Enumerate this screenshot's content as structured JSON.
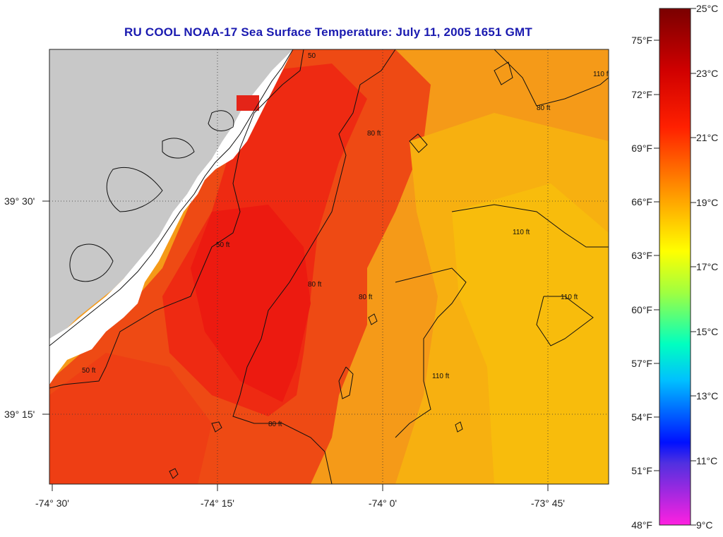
{
  "title": "RU COOL  NOAA-17  Sea Surface Temperature:  July 11, 2005 1651 GMT",
  "axes": {
    "lon_labels": [
      "-74° 30'",
      "-74° 15'",
      "-74° 0'",
      "-73° 45'"
    ],
    "lat_labels": [
      "39° 30'",
      "39° 15'"
    ]
  },
  "contours": {
    "labels": [
      "50",
      "80 ft",
      "80 ft",
      "110 ft",
      "50 ft",
      "80 ft",
      "80 ft",
      "110 ft",
      "50 ft",
      "110 ft",
      "110 ft",
      "80 ft"
    ]
  },
  "colorbar": {
    "celsius": [
      "25°C",
      "23°C",
      "21°C",
      "19°C",
      "17°C",
      "15°C",
      "13°C",
      "11°C",
      "9°C"
    ],
    "fahrenheit": [
      "75°F",
      "72°F",
      "69°F",
      "66°F",
      "63°F",
      "60°F",
      "57°F",
      "54°F",
      "51°F",
      "48°F"
    ]
  },
  "colors": {
    "land": "#c8c8c8",
    "cloud": "#ffffff",
    "title": "#1a1ab0"
  }
}
